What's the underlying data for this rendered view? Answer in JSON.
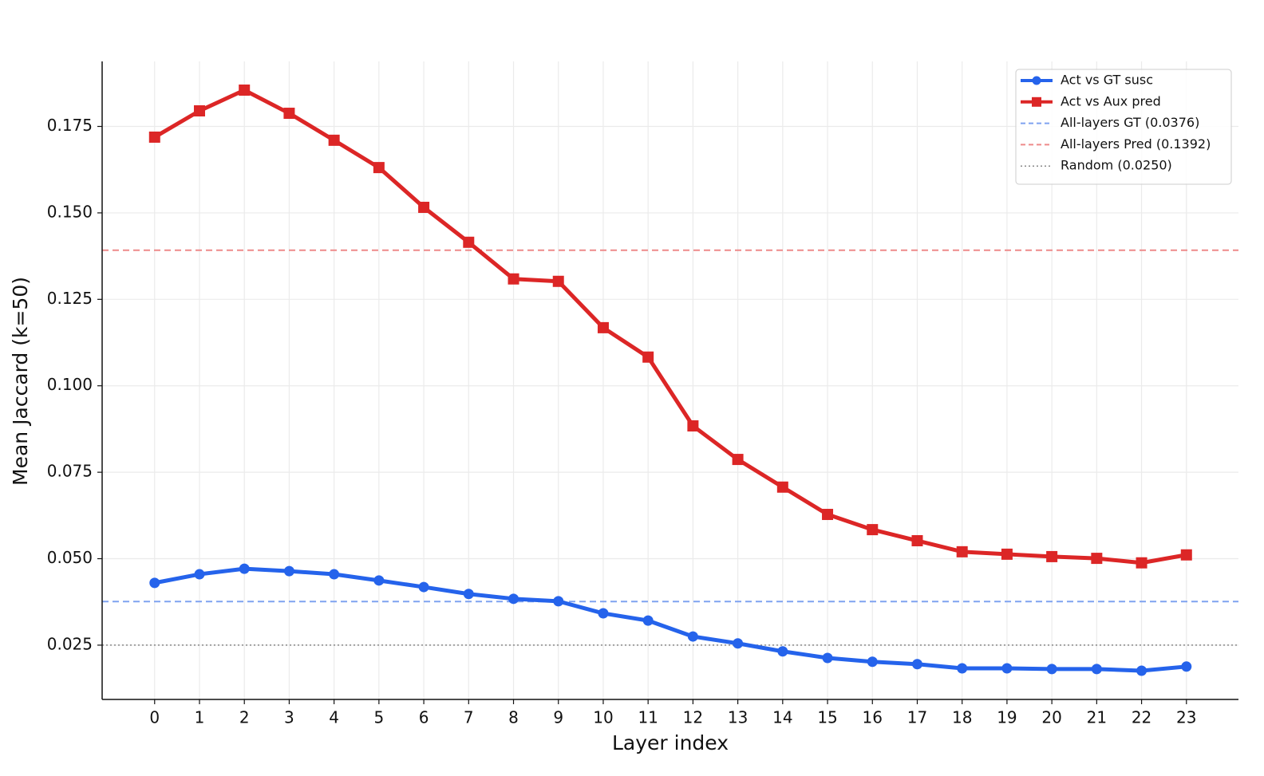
{
  "chart_data": {
    "type": "line",
    "x_label": "Layer index",
    "y_label": "Mean Jaccard (k=50)",
    "x": [
      0,
      1,
      2,
      3,
      4,
      5,
      6,
      7,
      8,
      9,
      10,
      11,
      12,
      13,
      14,
      15,
      16,
      17,
      18,
      19,
      20,
      21,
      22,
      23
    ],
    "series": [
      {
        "name": "Act vs GT susc",
        "color": "#2563eb",
        "marker": "circle",
        "values": [
          0.043,
          0.0455,
          0.0471,
          0.0464,
          0.0455,
          0.0437,
          0.0418,
          0.0398,
          0.0384,
          0.0377,
          0.0342,
          0.0321,
          0.0275,
          0.0255,
          0.0232,
          0.0213,
          0.0202,
          0.0195,
          0.0183,
          0.0183,
          0.0181,
          0.0181,
          0.0176,
          0.0188
        ]
      },
      {
        "name": "Act vs Aux pred",
        "color": "#dc2626",
        "marker": "square",
        "values": [
          0.1719,
          0.1795,
          0.1855,
          0.1788,
          0.171,
          0.1631,
          0.1516,
          0.1415,
          0.1309,
          0.1302,
          0.1168,
          0.1083,
          0.0884,
          0.0787,
          0.0707,
          0.0628,
          0.0584,
          0.0552,
          0.052,
          0.0513,
          0.0506,
          0.0501,
          0.0488,
          0.0511
        ]
      }
    ],
    "hlines": [
      {
        "name": "All-layers GT (0.0376)",
        "value": 0.0376,
        "color": "#7fa2f0",
        "style": "dashed"
      },
      {
        "name": "All-layers Pred (0.1392)",
        "value": 0.1392,
        "color": "#ee8a8a",
        "style": "dashed"
      },
      {
        "name": "Random (0.0250)",
        "value": 0.025,
        "color": "#888888",
        "style": "dotted"
      }
    ],
    "xlim": [
      -1.17,
      24.16
    ],
    "xticks": [
      0,
      1,
      2,
      3,
      4,
      5,
      6,
      7,
      8,
      9,
      10,
      11,
      12,
      13,
      14,
      15,
      16,
      17,
      18,
      19,
      20,
      21,
      22,
      23
    ],
    "ylim": [
      0.0093,
      0.1938
    ],
    "yticks": [
      {
        "value": 0.025,
        "label": "0.025"
      },
      {
        "value": 0.05,
        "label": "0.050"
      },
      {
        "value": 0.075,
        "label": "0.075"
      },
      {
        "value": 0.1,
        "label": "0.100"
      },
      {
        "value": 0.125,
        "label": "0.125"
      },
      {
        "value": 0.15,
        "label": "0.150"
      },
      {
        "value": 0.175,
        "label": "0.175"
      }
    ],
    "grid": true,
    "legend": "upper-right"
  }
}
